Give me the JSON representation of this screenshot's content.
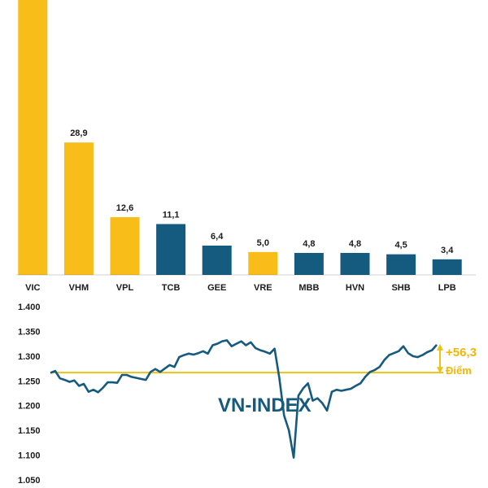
{
  "colors": {
    "highlight": "#f9bd1a",
    "primary": "#155a7f",
    "reference": "#e8c31a",
    "axis": "#1b1b1b"
  },
  "chart_data": [
    {
      "type": "bar",
      "categories": [
        "VIC",
        "VHM",
        "VPL",
        "TCB",
        "GEE",
        "VRE",
        "MBB",
        "HVN",
        "SHB",
        "LPB"
      ],
      "values": [
        60,
        28.9,
        12.6,
        11.1,
        6.4,
        5.0,
        4.8,
        4.8,
        4.5,
        3.4
      ],
      "value_labels": [
        "",
        "28,9",
        "12,6",
        "11,1",
        "6,4",
        "5,0",
        "4,8",
        "4,8",
        "4,5",
        "3,4"
      ],
      "highlighted": [
        true,
        true,
        true,
        false,
        false,
        true,
        false,
        false,
        false,
        false
      ],
      "title": "",
      "xlabel": "",
      "ylabel": "",
      "ylim": [
        0,
        60
      ],
      "grid": false,
      "legend": "none"
    },
    {
      "type": "line",
      "series": [
        {
          "name": "VN-INDEX",
          "x": [
            0,
            1,
            2,
            3,
            4,
            5,
            6,
            7,
            8,
            9,
            10,
            11,
            12,
            13,
            14,
            15,
            16,
            17,
            18,
            19,
            20,
            21,
            22,
            23,
            24,
            25,
            26,
            27,
            28,
            29,
            30,
            31,
            32,
            33,
            34,
            35,
            36,
            37,
            38,
            39,
            40,
            41,
            42,
            43,
            44,
            45,
            46,
            47,
            48,
            49,
            50,
            51,
            52,
            53,
            54,
            55,
            56,
            57,
            58,
            59,
            60,
            61,
            62,
            63,
            64,
            65,
            66,
            67,
            68,
            69,
            70,
            71,
            72,
            73,
            74,
            75,
            76,
            77,
            78,
            79,
            80,
            81
          ],
          "values": [
            1266,
            1270,
            1255,
            1252,
            1248,
            1251,
            1240,
            1244,
            1228,
            1232,
            1227,
            1236,
            1247,
            1247,
            1246,
            1262,
            1262,
            1258,
            1256,
            1254,
            1252,
            1268,
            1274,
            1268,
            1275,
            1282,
            1278,
            1298,
            1302,
            1305,
            1303,
            1306,
            1310,
            1305,
            1322,
            1325,
            1330,
            1332,
            1320,
            1325,
            1330,
            1322,
            1328,
            1316,
            1312,
            1309,
            1305,
            1315,
            1255,
            1180,
            1150,
            1095,
            1220,
            1235,
            1245,
            1210,
            1215,
            1205,
            1190,
            1228,
            1232,
            1230,
            1232,
            1234,
            1240,
            1245,
            1258,
            1268,
            1272,
            1278,
            1292,
            1302,
            1306,
            1310,
            1320,
            1306,
            1300,
            1298,
            1302,
            1308,
            1312,
            1323
          ]
        }
      ],
      "reference_line": 1266.7,
      "annotation": {
        "label": "VN-INDEX",
        "delta": "+56,3",
        "delta_unit": "Điểm"
      },
      "yticks": [
        1400,
        1350,
        1300,
        1250,
        1200,
        1150,
        1100,
        1050
      ],
      "ytick_labels": [
        "1.400",
        "1.350",
        "1.300",
        "1.250",
        "1.200",
        "1.150",
        "1.100",
        "1.050"
      ],
      "ylim": [
        1050,
        1400
      ],
      "grid": false,
      "legend": "none"
    }
  ]
}
